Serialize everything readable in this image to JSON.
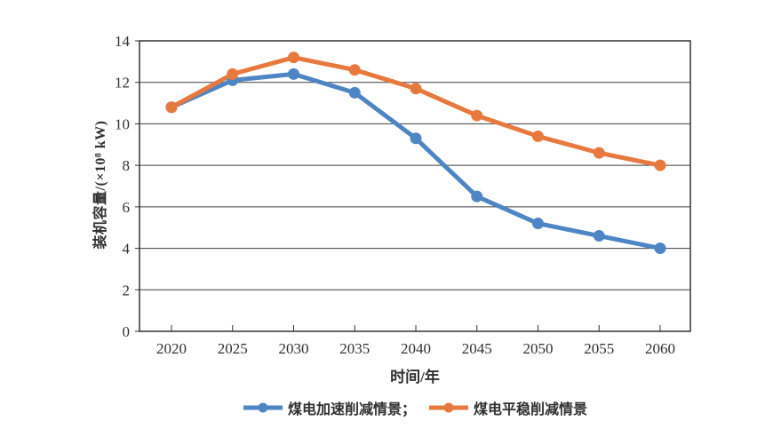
{
  "legend": {
    "items": [
      {
        "label": "煤电加速削减情景；",
        "color": "#4E86C5"
      },
      {
        "label": "煤电平稳削减情景",
        "color": "#E8793E"
      }
    ]
  },
  "chart_data": {
    "type": "line",
    "categories": [
      "2020",
      "2025",
      "2030",
      "2035",
      "2040",
      "2045",
      "2050",
      "2055",
      "2060"
    ],
    "series": [
      {
        "name": "煤电加速削减情景",
        "color": "#4E86C5",
        "values": [
          10.8,
          12.1,
          12.4,
          11.5,
          9.3,
          6.5,
          5.2,
          4.6,
          4.0
        ]
      },
      {
        "name": "煤电平稳削减情景",
        "color": "#E8793E",
        "values": [
          10.8,
          12.4,
          13.2,
          12.6,
          11.7,
          10.4,
          9.4,
          8.6,
          8.0
        ]
      }
    ],
    "title": "",
    "xlabel": "时间/年",
    "ylabel": "装机容量/(×10⁸ kW)",
    "ylim": [
      0,
      14
    ],
    "yticks": [
      0,
      2,
      4,
      6,
      8,
      10,
      12,
      14
    ],
    "grid": "horizontal",
    "legend_position": "bottom",
    "marker": "circle"
  }
}
